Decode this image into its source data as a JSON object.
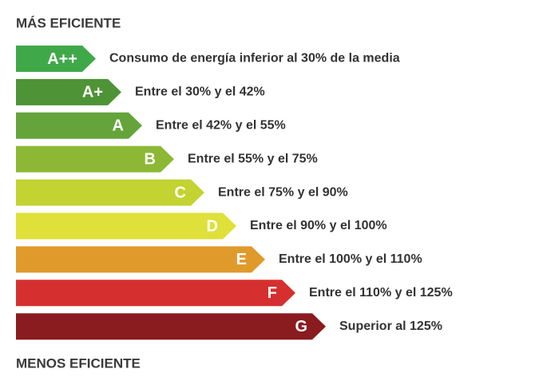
{
  "header": {
    "title": "MÁS EFICIENTE"
  },
  "rows": [
    {
      "label": "A++",
      "description": "Consumo de energía inferior al 30% de la media"
    },
    {
      "label": "A+",
      "description": "Entre el 30% y el 42%"
    },
    {
      "label": "A",
      "description": "Entre el 42% y el 55%"
    },
    {
      "label": "B",
      "description": "Entre el 55% y el 75%"
    },
    {
      "label": "C",
      "description": "Entre el 75% y el 90%"
    },
    {
      "label": "D",
      "description": "Entre el 90% y el 100%"
    },
    {
      "label": "E",
      "description": "Entre el 100% y el 110%"
    },
    {
      "label": "F",
      "description": "Entre el 110% y el 125%"
    },
    {
      "label": "G",
      "description": "Superior al 125%"
    }
  ],
  "footer": {
    "title": "MENOS EFICIENTE"
  }
}
